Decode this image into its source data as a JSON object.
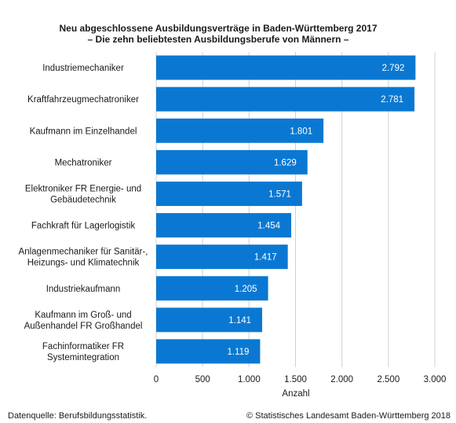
{
  "chart_data": {
    "type": "bar",
    "orientation": "horizontal",
    "title": "Neu abgeschlossene Ausbildungsverträge in Baden-Württemberg 2017",
    "subtitle": "– Die zehn beliebtesten Ausbildungsberufe von Männern –",
    "categories": [
      [
        "Industriemechaniker"
      ],
      [
        "Kraftfahrzeugmechatroniker"
      ],
      [
        "Kaufmann im Einzelhandel"
      ],
      [
        "Mechatroniker"
      ],
      [
        "Elektroniker FR Energie- und",
        "Gebäudetechnik"
      ],
      [
        "Fachkraft für Lagerlogistik"
      ],
      [
        "Anlagenmechaniker für Sanitär-,",
        "Heizungs- und Klimatechnik"
      ],
      [
        "Industriekaufmann"
      ],
      [
        "Kaufmann im Groß- und",
        "Außenhandel FR Großhandel"
      ],
      [
        "Fachinformatiker FR",
        "Systemintegration"
      ]
    ],
    "values": [
      2792,
      2781,
      1801,
      1629,
      1571,
      1454,
      1417,
      1205,
      1141,
      1119
    ],
    "data_labels": [
      "2.792",
      "2.781",
      "1.801",
      "1.629",
      "1.571",
      "1.454",
      "1.417",
      "1.205",
      "1.141",
      "1.119"
    ],
    "xlabel": "Anzahl",
    "xlim": [
      0,
      3000
    ],
    "xticks": [
      0,
      500,
      1000,
      1500,
      2000,
      2500,
      3000
    ],
    "xtick_labels": [
      "0",
      "500",
      "1.000",
      "1.500",
      "2.000",
      "2.500",
      "3.000"
    ],
    "grid": true,
    "bar_color": "#0a78d2"
  },
  "footer": {
    "source": "Datenquelle: Berufsbildungsstatistik.",
    "copyright": "© Statistisches Landesamt Baden-Württemberg 2018"
  }
}
